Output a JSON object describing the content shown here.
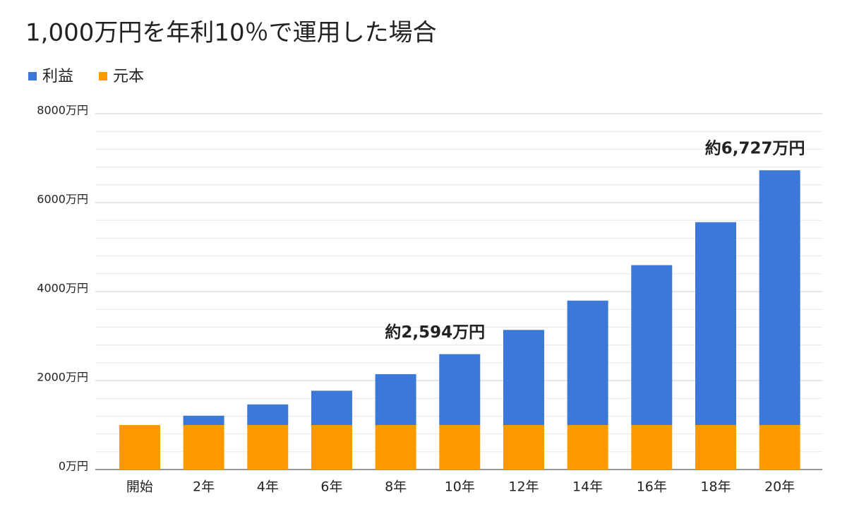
{
  "chart_data": {
    "type": "stacked_bar",
    "title": "1,000万円を年利10％で運用した場合",
    "categories": [
      "開始",
      "2年",
      "4年",
      "6年",
      "8年",
      "10年",
      "12年",
      "14年",
      "16年",
      "18年",
      "20年"
    ],
    "series": [
      {
        "name": "利益",
        "color": "#3c78d8",
        "values": [
          0,
          210,
          464.1,
          771.56,
          1143.59,
          1593.74,
          2138.43,
          2797.5,
          3594.97,
          4559.92,
          5727.5
        ]
      },
      {
        "name": "元本",
        "color": "#ff9900",
        "values": [
          1000,
          1000,
          1000,
          1000,
          1000,
          1000,
          1000,
          1000,
          1000,
          1000,
          1000
        ]
      }
    ],
    "ylim": [
      0,
      8000
    ],
    "yticks": [
      {
        "value": 0,
        "label": "0万円"
      },
      {
        "value": 2000,
        "label": "2000万円"
      },
      {
        "value": 4000,
        "label": "4000万円"
      },
      {
        "value": 6000,
        "label": "6000万円"
      },
      {
        "value": 8000,
        "label": "8000万円"
      }
    ],
    "grid": true,
    "minor_grid_divisions": 5,
    "legend": "top-left",
    "annotations": [
      {
        "text": "約2,594万円",
        "category": "10年"
      },
      {
        "text": "約6,727万円",
        "category": "20年"
      }
    ]
  }
}
